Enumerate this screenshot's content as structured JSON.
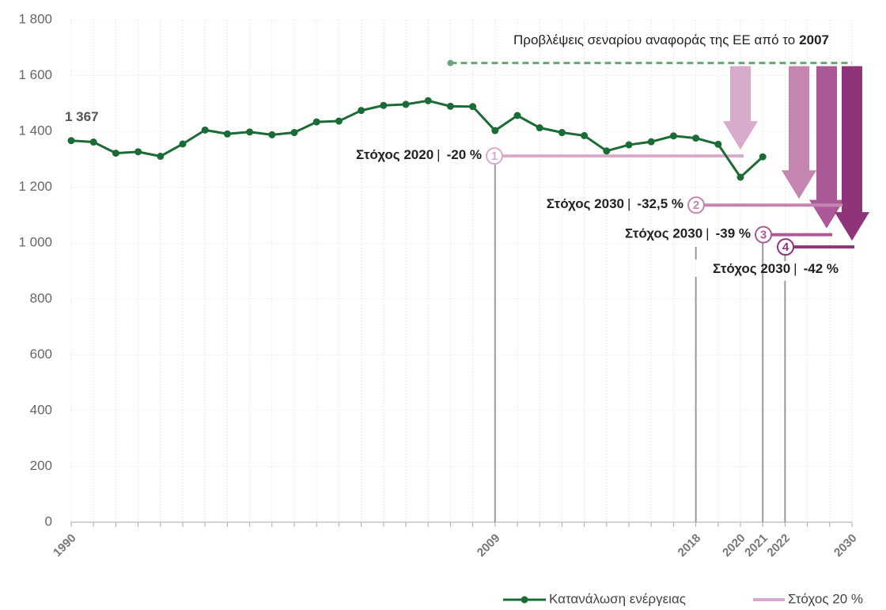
{
  "chart_data": {
    "type": "line",
    "categories": [
      "1990",
      null,
      null,
      null,
      null,
      null,
      null,
      null,
      null,
      null,
      null,
      null,
      null,
      null,
      null,
      null,
      null,
      null,
      null,
      "2009",
      null,
      null,
      null,
      null,
      null,
      null,
      null,
      null,
      "2018",
      null,
      "2020",
      "2021",
      "2022",
      null,
      null,
      "2030"
    ],
    "series": [
      {
        "name": "Κατανάλωση ενέργειας",
        "color": "#1a6b35",
        "values": [
          1367,
          1362,
          1322,
          1327,
          1311,
          1355,
          1405,
          1391,
          1398,
          1388,
          1396,
          1434,
          1437,
          1475,
          1493,
          1497,
          1510,
          1490,
          1489,
          1403,
          1457,
          1413,
          1396,
          1385,
          1330,
          1352,
          1363,
          1384,
          1376,
          1354,
          1236,
          1309,
          null,
          null,
          null,
          null
        ],
        "value_labels": [
          "1 367",
          null,
          null,
          null,
          null,
          null,
          null,
          null,
          null,
          null,
          null,
          null,
          null,
          null,
          null,
          null,
          null,
          null,
          null,
          null,
          null,
          null,
          null,
          null,
          null,
          null,
          null,
          null,
          null,
          null,
          null,
          null,
          null,
          null,
          null,
          null
        ]
      }
    ],
    "ylim": [
      0,
      1800
    ],
    "yticks": [
      0,
      200,
      400,
      600,
      800,
      {
        "value": 1000,
        "label": "1 000"
      },
      {
        "value": 1200,
        "label": "1 200"
      },
      {
        "value": 1400,
        "label": "1 400"
      },
      {
        "value": 1600,
        "label": "1 600"
      },
      {
        "value": 1800,
        "label": "1 800"
      }
    ],
    "grid": true,
    "projection": {
      "text": "Προβλέψεις σεναρίου αναφοράς της ΕΕ από το",
      "bold": "2007",
      "value": 1645,
      "color": "#6aa37c"
    },
    "targets": [
      {
        "number": "1",
        "label": "Στόχος 2020",
        "percent": "-20 %",
        "value": 1312,
        "color": "#d9abcb"
      },
      {
        "number": "2",
        "label": "Στόχος 2030",
        "percent": "-32,5 %",
        "value": 1136,
        "color": "#c585b1"
      },
      {
        "number": "3",
        "label": "Στόχος 2030",
        "percent": "-39 %",
        "value": 1030,
        "color": "#ab5a97"
      },
      {
        "number": "4",
        "label": "Στόχος 2030",
        "percent": "-42 %",
        "value": 986,
        "color": "#8f3479"
      }
    ],
    "legend_target": "Στόχος 20 %"
  }
}
